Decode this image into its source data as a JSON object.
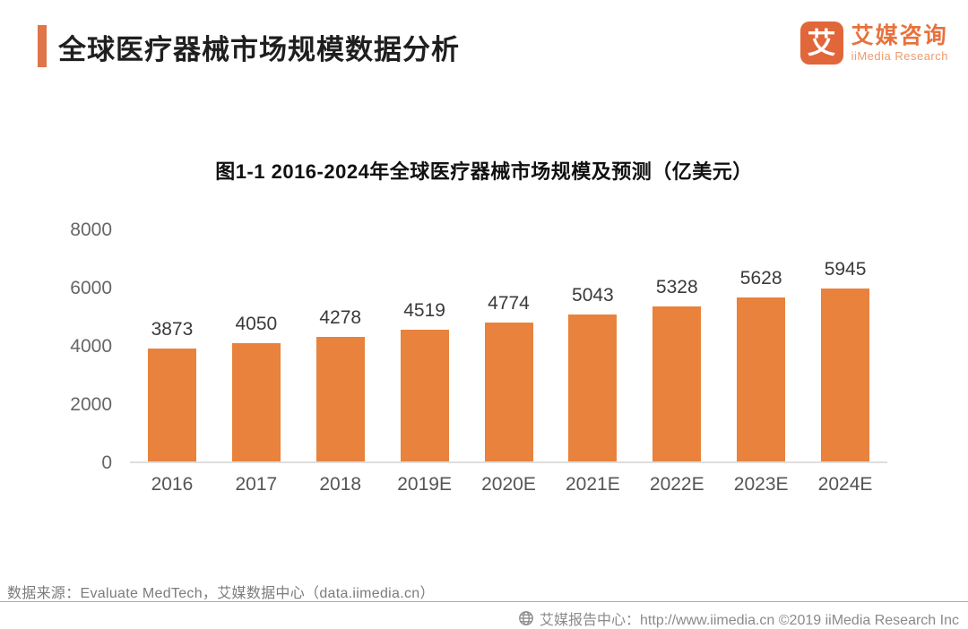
{
  "header": {
    "title": "全球医疗器械市场规模数据分析",
    "logo": {
      "icon_char": "艾",
      "name_cn": "艾媒咨询",
      "name_en": "iiMedia Research"
    }
  },
  "chart_data": {
    "type": "bar",
    "title": "图1-1 2016-2024年全球医疗器械市场规模及预测（亿美元）",
    "categories": [
      "2016",
      "2017",
      "2018",
      "2019E",
      "2020E",
      "2021E",
      "2022E",
      "2023E",
      "2024E"
    ],
    "values": [
      3873,
      4050,
      4278,
      4519,
      4774,
      5043,
      5328,
      5628,
      5945
    ],
    "xlabel": "",
    "ylabel": "",
    "ylim": [
      0,
      8000
    ],
    "yticks": [
      0,
      2000,
      4000,
      6000,
      8000
    ],
    "bar_color": "#E8823C",
    "grid": false,
    "legend_position": "none",
    "data_labels": true
  },
  "source_note": "数据来源：Evaluate MedTech，艾媒数据中心（data.iimedia.cn）",
  "footer": {
    "text": "艾媒报告中心：http://www.iimedia.cn ©2019  iiMedia Research Inc"
  },
  "colors": {
    "accent": "#E0744B",
    "bar": "#E8823C",
    "logo_orange": "#E8713C"
  }
}
